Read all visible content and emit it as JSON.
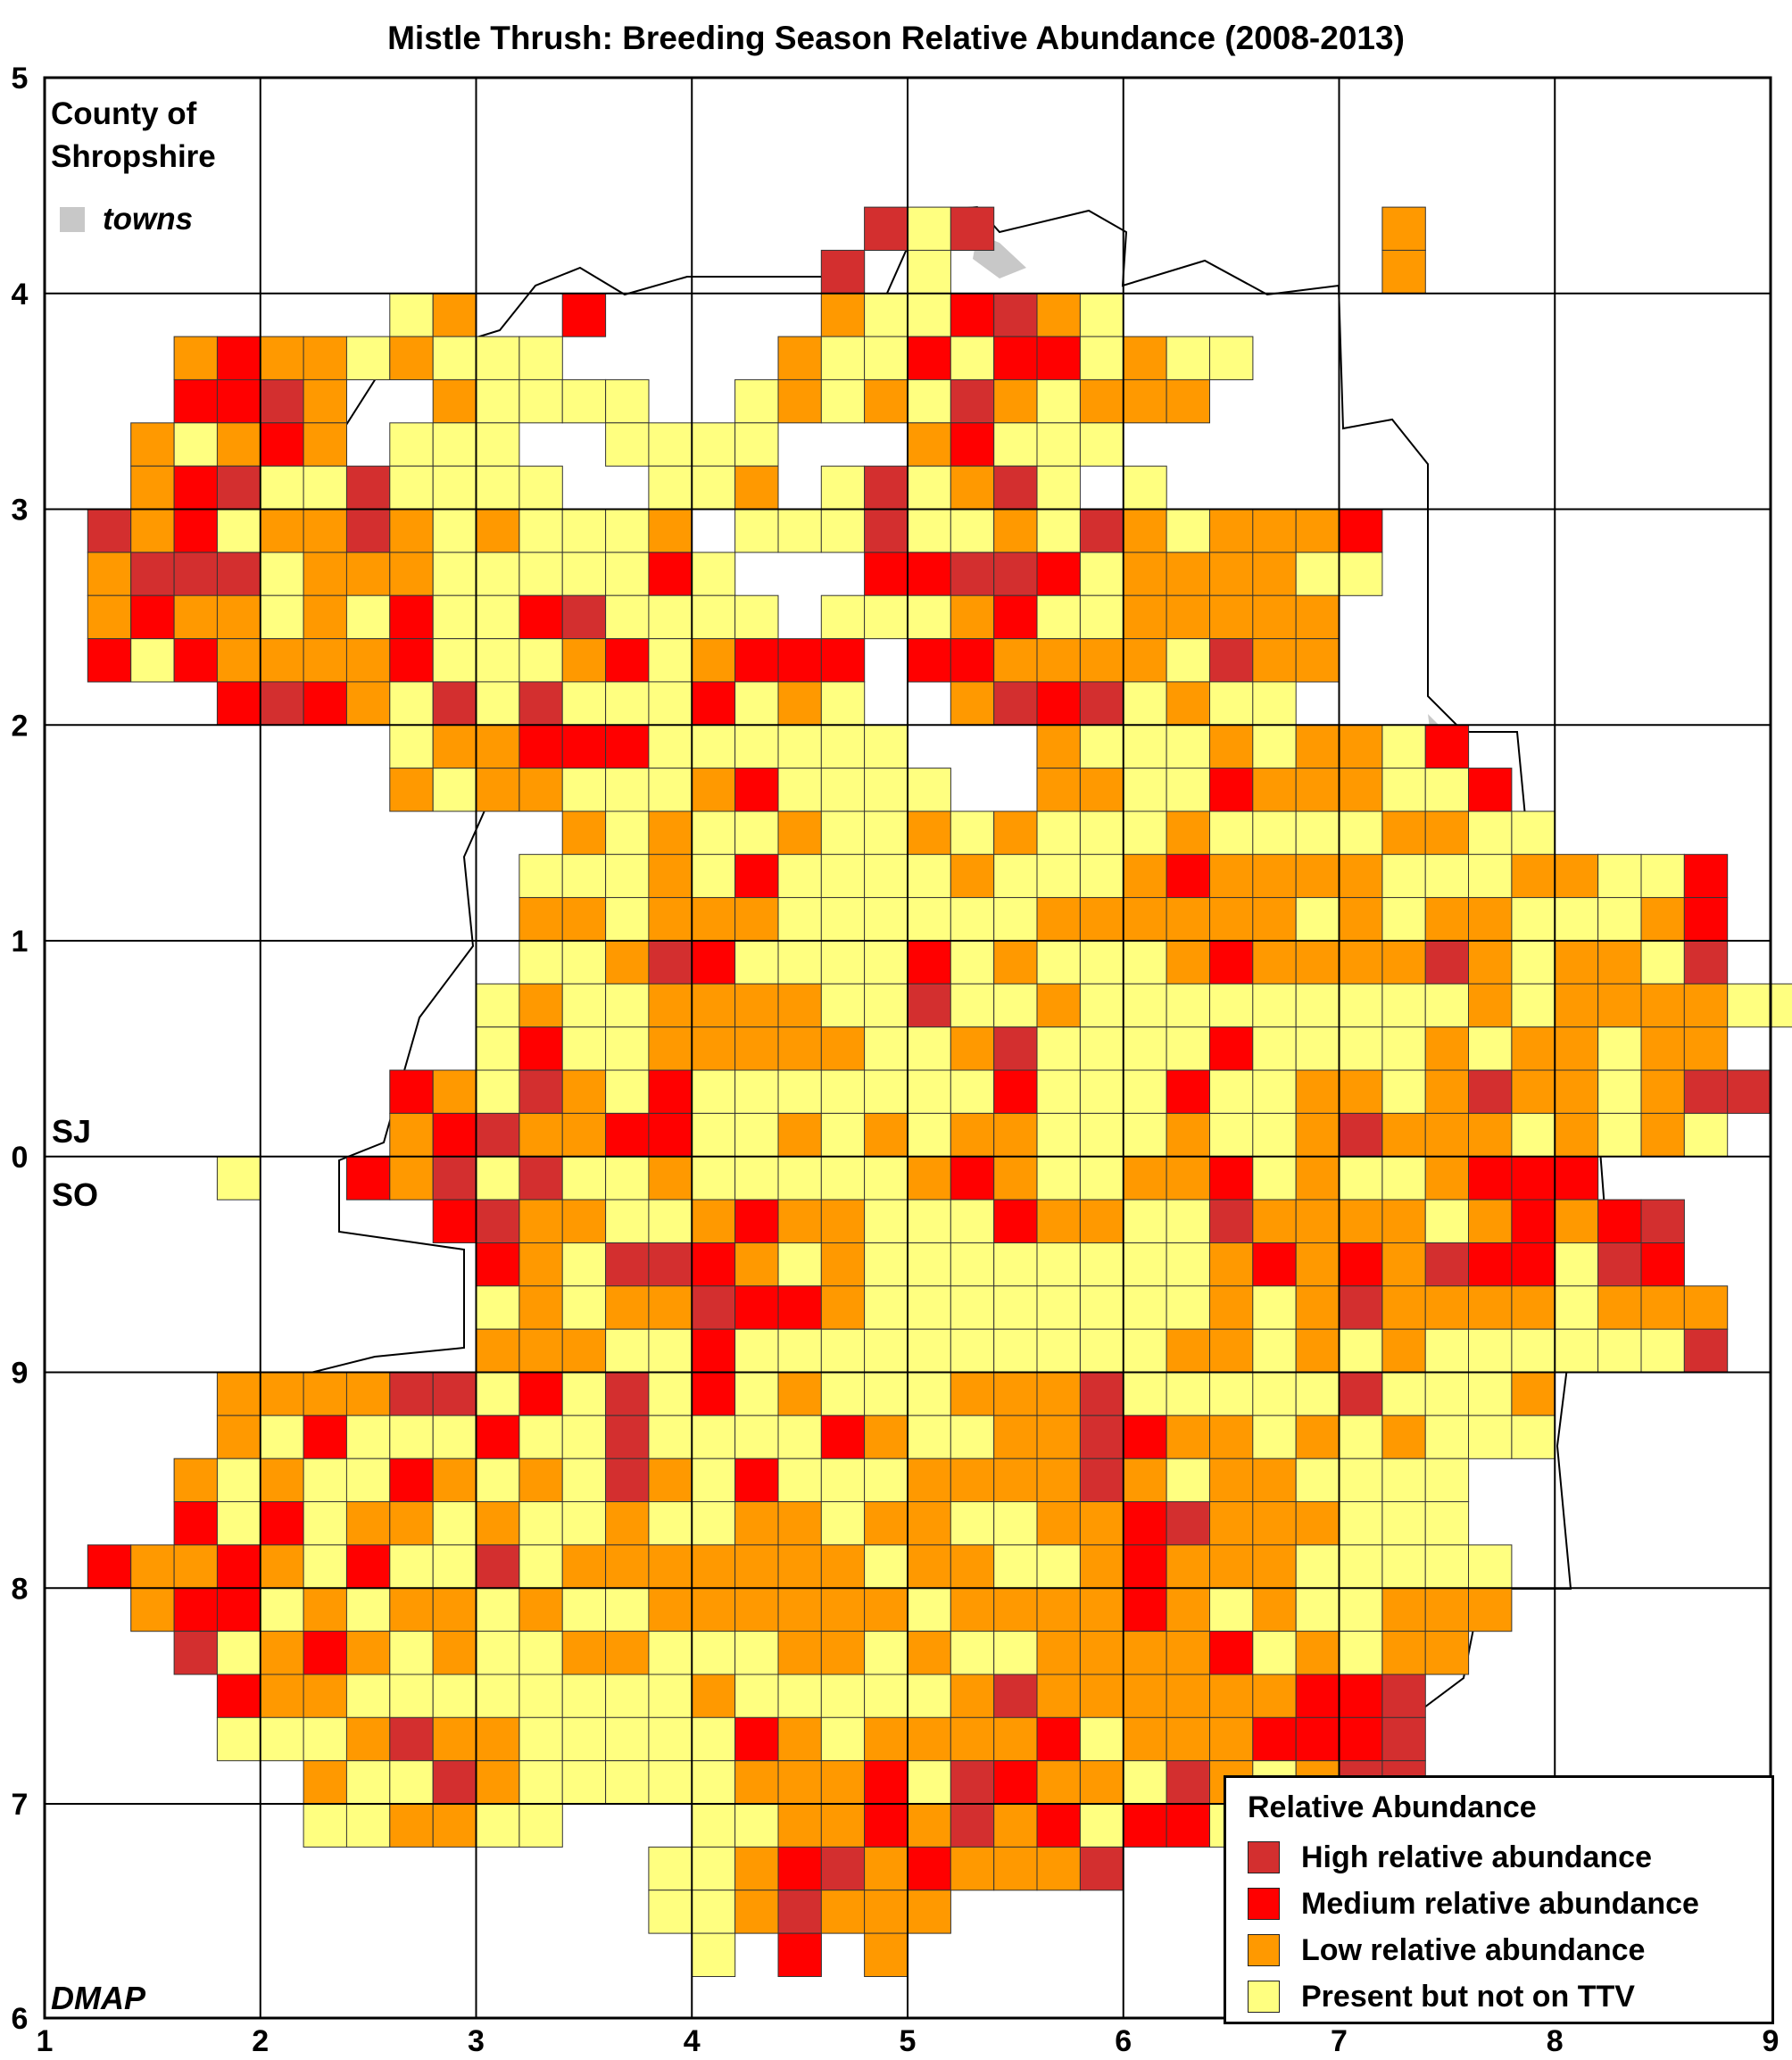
{
  "title": "Mistle Thrush: Breeding Season Relative Abundance (2008-2013)",
  "county_label_line1": "County of",
  "county_label_line2": "Shropshire",
  "towns_label": "towns",
  "source_label": "DMAP",
  "grid_labels": {
    "north": "SJ",
    "south": "SO"
  },
  "axes": {
    "x_ticks": [
      "1",
      "2",
      "3",
      "4",
      "5",
      "6",
      "7",
      "8",
      "9"
    ],
    "y_ticks": [
      "5",
      "4",
      "3",
      "2",
      "1",
      "0",
      "9",
      "8",
      "7",
      "6"
    ]
  },
  "colors": {
    "high": "#d32f2f",
    "medium": "#ff0000",
    "low": "#ff9900",
    "present": "#ffff80",
    "towns": "#c8c8c8"
  },
  "legend": {
    "title": "Relative Abundance",
    "items": [
      {
        "key": "high",
        "label": "High relative abundance"
      },
      {
        "key": "medium",
        "label": "Medium relative abundance"
      },
      {
        "key": "low",
        "label": "Low relative abundance"
      },
      {
        "key": "present",
        "label": "Present but not on TTV"
      }
    ]
  },
  "map_data": {
    "cell_codes": "H=High relative abundance, M=Medium relative abundance, L=Low relative abundance, P=Present but not on TTV, .=no record",
    "rows": [
      "......................................",
      "......................................",
      "......................................",
      "...................HPH.........L......",
      "..................H.P..........L......",
      "........PL..M.....LPPMHLP.....",
      "...LMLLPLPPP.....LPPMPMMPLPP...",
      "...MMHL..LPPPP..PLPLPHLPLLL.",
      "..LPLML.PPP..PPPP...LMPPP...",
      "..LMHPPHPPPP..PPL.PHPLHP.P....",
      ".HLMPLLHLPLPPPL.PPPHPPLPHLPLLLM",
      ".LHHHPLLLPPPPPMP...MMHHMPLLLLPP",
      ".LMLLPLPMPPMHPPPP.PPPLMPPLLLLL",
      ".MPMLLLLMPPPLMPLMMM.MMLLLLPHLL",
      "....MHMLPHPHPPPMPLP..LHMHPLPP",
      "........PLLMMMPPPPPP...LPPPLPLLPM",
      "........LPLLPPPLMPPPP..LLPPMLLLPPM",
      "............LPLPPLPPLPLPPPLPPPPLLPP",
      "...........PPPLPMPPPPLPPPLMLLLLPPPLLPPM",
      "...........LLPLLLPPPPPPLLLLLLPLPLLPPPLM",
      "...........PPLHMPPPPMPLPPPLMLLLLHLPLLPH",
      "..........PLPPLLLLPPHPPLPPPPPPPPPLPLLLLPP",
      "..........PMPPLLLLLPPLHPPPPMPPPPLPLLPLL",
      "........MLPHLPMPPPPPPPMPPPMPPLLPLHLLPLHH",
      "........LMHLLMMPPLPLPLLPPPLPPLHLLLPLPLP",
      "....P..MLHPHPPLPPPPPLMLPPLLMPLPPLMMM",
      ".........MHLLPPLMLLPPPMLLPPHLLLLPLMLMH",
      "..........MLPHHMLPLPPPPPPPPLMLMLHMMPHM",
      "..........PLPLLHMMLPPPPPPPPLPLHLLLLPLLL",
      "..........LLLPPMPPPPPPPPPPLLPLPLPPPPPPH",
      "....LLLLHHPMPHPMPLPPPLLLHPPPPPHPPPL",
      "....LPMPPPMPPHPPPPMLPPLLHMLLPLPLPPP",
      "...LPLPPMLPLPHLPMPPPLLLLHLPLLPPPP",
      "...MPMPLLPLPPLPPLLPLLPPLLMHLLLPPP.",
      ".MLLMLPMPPHPLLLLLLLPLLPPLMLLLPPPPP",
      "..LMMPLPLLPLPPLLLLLLPLLLLMLPLPPLLL",
      "...HPLMLPLPPLLPPPLLPLPPLLLLMPLPLL",
      "....MLLPPPPPPPPLPPPPPLHLLLLLLMMH",
      "....PPPLHLLPPPPPMLPLLLLMPLLLMMMH",
      "......LPPHLPPPPPLLLMPHMLLPHLPLHH",
      "......PPLLPP...PPLLMLHLMPMMP",
      "..............PPLMHLMLLLH",
      "..............PPLHLLL",
      "...............P.M.L",
      "......................................",
      "......................................",
      "......................................",
      "......................................",
      "......................................",
      "......................................",
      "......................................",
      "......................................",
      "......................................",
      "......................................",
      "......................................",
      "......................................",
      "......................................"
    ]
  }
}
